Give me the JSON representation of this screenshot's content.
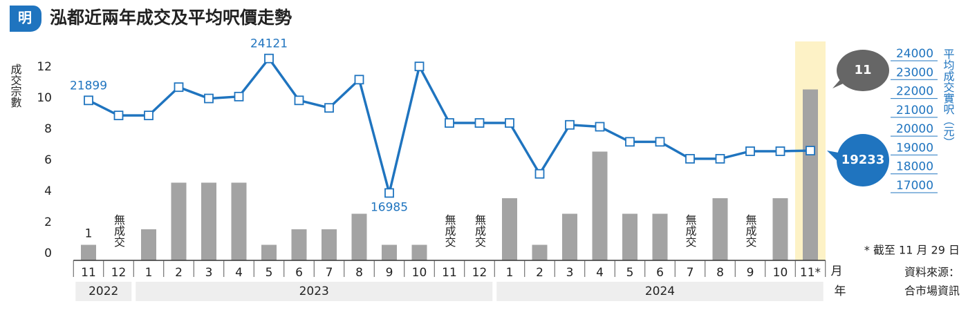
{
  "chart_data": {
    "type": "bar-line",
    "title": "泓都近兩年成交及平均呎價走勢",
    "logo": "明",
    "categories": [
      "11",
      "12",
      "1",
      "2",
      "3",
      "4",
      "5",
      "6",
      "7",
      "8",
      "9",
      "10",
      "11",
      "12",
      "1",
      "2",
      "3",
      "4",
      "5",
      "6",
      "7",
      "8",
      "9",
      "10",
      "11*"
    ],
    "years": [
      {
        "label": "2022",
        "start": 0,
        "end": 1
      },
      {
        "label": "2023",
        "start": 2,
        "end": 13
      },
      {
        "label": "2024",
        "start": 14,
        "end": 24
      }
    ],
    "x_unit_month": "月",
    "x_unit_year": "年",
    "series": [
      {
        "name": "成交宗數",
        "type": "bar",
        "color": "#a3a3a3",
        "values": [
          1,
          0,
          2,
          5,
          5,
          5,
          1,
          2,
          2,
          3,
          1,
          1,
          0,
          0,
          4,
          1,
          3,
          7,
          3,
          3,
          0,
          4,
          0,
          4,
          11
        ],
        "value_labels": [
          "1",
          "無成交",
          null,
          null,
          null,
          null,
          null,
          null,
          null,
          null,
          null,
          null,
          "無成交",
          "無成交",
          null,
          null,
          null,
          null,
          null,
          null,
          "無成交",
          null,
          "無成交",
          null,
          "11"
        ]
      },
      {
        "name": "平均成交實呎（元）",
        "type": "line",
        "axis": "y2",
        "color": "#1f74bf",
        "values": [
          21899,
          21100,
          21100,
          22600,
          22000,
          22100,
          24121,
          21900,
          21500,
          23000,
          16985,
          23700,
          20700,
          20700,
          20700,
          18000,
          20600,
          20500,
          19700,
          19700,
          18800,
          18800,
          19200,
          19200,
          19233
        ],
        "value_labels": [
          "21899",
          null,
          null,
          null,
          null,
          null,
          "24121",
          null,
          null,
          null,
          "16985",
          null,
          null,
          null,
          null,
          null,
          null,
          null,
          null,
          null,
          null,
          null,
          null,
          null,
          "19233"
        ]
      }
    ],
    "ylim": [
      0,
      12
    ],
    "yticks": [
      0,
      2,
      4,
      6,
      8,
      10,
      12
    ],
    "y2lim": [
      17000,
      24000
    ],
    "y2ticks": [
      17000,
      18000,
      19000,
      20000,
      21000,
      22000,
      23000,
      24000
    ],
    "highlight_index": 24,
    "note": "* 截至 11 月 29 日",
    "source": [
      "資料來源：",
      "合市場資訊"
    ]
  }
}
